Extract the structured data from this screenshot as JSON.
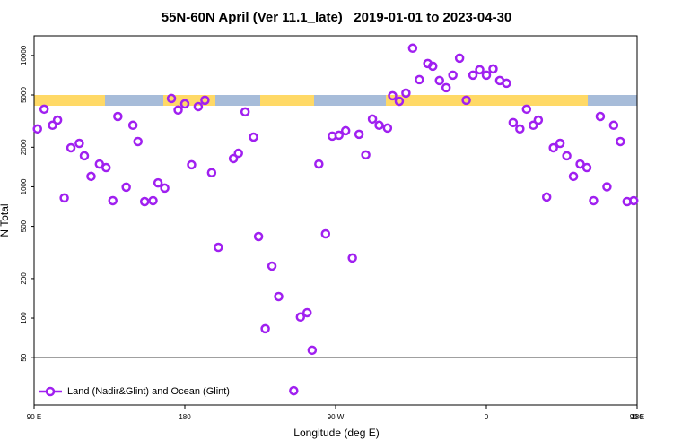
{
  "chart_data": {
    "type": "scatter",
    "title": "55N-60N April (Ver 11.1_late)   2019-01-01 to 2023-04-30",
    "x_label": "Longitude (deg E)",
    "y_label": "N Total",
    "x": [
      92,
      96,
      101,
      104,
      108,
      112,
      117,
      120,
      124,
      129,
      133,
      137,
      140,
      145,
      149,
      152,
      156,
      161,
      164,
      168,
      172,
      176,
      180,
      184,
      188,
      192,
      196,
      200,
      209,
      212,
      216,
      221,
      224,
      228,
      232,
      236,
      245,
      249,
      253,
      256,
      260,
      264,
      268,
      272,
      276,
      280,
      284,
      288,
      292,
      296,
      301,
      304,
      308,
      312,
      316,
      320,
      325,
      328,
      332,
      336,
      340,
      344,
      348,
      352,
      356,
      360,
      364,
      368,
      372,
      376,
      380,
      384,
      388,
      391,
      396,
      400,
      404,
      408,
      412,
      416,
      420,
      424,
      428,
      432,
      436,
      440,
      444,
      448
    ],
    "series": [
      {
        "name": "Land (Nadir&Glint) and Ocean (Glint)",
        "color": "#a020f0",
        "values": [
          2760,
          3900,
          2940,
          3220,
          822,
          1980,
          2140,
          1720,
          1200,
          1490,
          1400,
          784,
          3430,
          993,
          2940,
          2210,
          771,
          784,
          1070,
          977,
          4700,
          3840,
          4280,
          1470,
          4080,
          4560,
          1280,
          346,
          1640,
          1800,
          3720,
          2390,
          418,
          83,
          249,
          146,
          28,
          102,
          110,
          57,
          1490,
          438,
          2430,
          2470,
          2670,
          287,
          2510,
          1750,
          3280,
          2940,
          2800,
          4930,
          4480,
          5170,
          11350,
          6540,
          8680,
          8280,
          6440,
          5680,
          7080,
          9540,
          4560,
          7080,
          7780,
          7080,
          7900,
          6440,
          6140,
          3080,
          2760,
          3900,
          2940,
          3220,
          835,
          1980,
          2140,
          1720,
          1200,
          1490,
          1400,
          784,
          3430,
          1000,
          2940,
          2210,
          771,
          784
        ]
      }
    ],
    "xlim": [
      90,
      450
    ],
    "xticks": [
      {
        "value": 90,
        "label": "90 E"
      },
      180,
      {
        "value": 270,
        "label": "90 W"
      },
      {
        "value": 360,
        "label": "0"
      },
      {
        "value": 450,
        "label": "90 E"
      },
      {
        "value": 540,
        "label": "180"
      }
    ],
    "ylim": [
      21.8,
      14100
    ],
    "log_y": true,
    "yticks": [
      50,
      100,
      200,
      500,
      1000,
      2000,
      5000,
      10000
    ],
    "hline": 50,
    "legend": "bottomleft"
  }
}
